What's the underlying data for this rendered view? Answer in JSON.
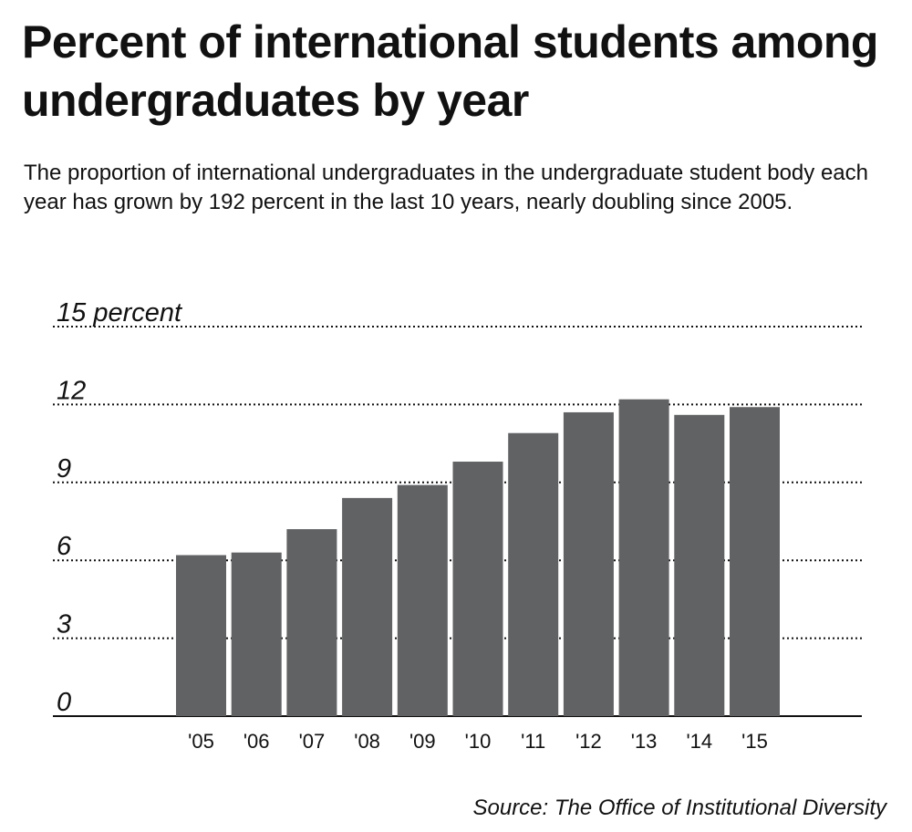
{
  "chart_data": {
    "type": "bar",
    "title": "Percent of international students among undergraduates by year",
    "subtitle": "The proportion of international undergraduates in the undergraduate student body each year has grown by 192 percent in the last 10 years, nearly doubling since 2005.",
    "source": "Source: The Office of Institutional Diversity",
    "categories": [
      "'05",
      "'06",
      "'07",
      "'08",
      "'09",
      "'10",
      "'11",
      "'12",
      "'13",
      "'14",
      "'15"
    ],
    "values": [
      6.2,
      6.3,
      7.2,
      8.4,
      8.9,
      9.8,
      10.9,
      11.7,
      12.2,
      11.6,
      11.9
    ],
    "color": "#616264",
    "ylim": [
      0,
      15
    ],
    "yticks": [
      0,
      3,
      6,
      9,
      12,
      {
        "value": 15,
        "label": "15 percent"
      }
    ],
    "grid": true
  }
}
